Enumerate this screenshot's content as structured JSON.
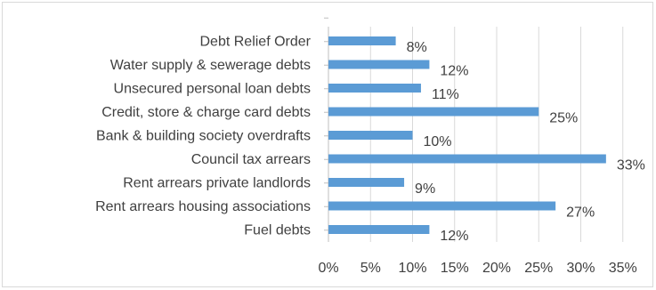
{
  "chart_data": {
    "type": "bar",
    "orientation": "horizontal",
    "title": "",
    "xlabel": "",
    "ylabel": "",
    "xlim": [
      0,
      35
    ],
    "x_ticks": [
      "0%",
      "5%",
      "10%",
      "15%",
      "20%",
      "25%",
      "30%",
      "35%"
    ],
    "grid": "vertical",
    "legend": "none",
    "bar_color": "#5b9bd5",
    "categories": [
      "Debt Relief Order",
      "Water supply & sewerage debts",
      "Unsecured personal loan debts",
      "Credit, store & charge card debts",
      "Bank & building society overdrafts",
      "Council tax arrears",
      "Rent arrears private landlords",
      "Rent arrears housing associations",
      "Fuel debts"
    ],
    "values": [
      8,
      12,
      11,
      25,
      10,
      33,
      9,
      27,
      12
    ],
    "data_labels": [
      "8%",
      "12%",
      "11%",
      "25%",
      "10%",
      "33%",
      "9%",
      "27%",
      "12%"
    ]
  }
}
